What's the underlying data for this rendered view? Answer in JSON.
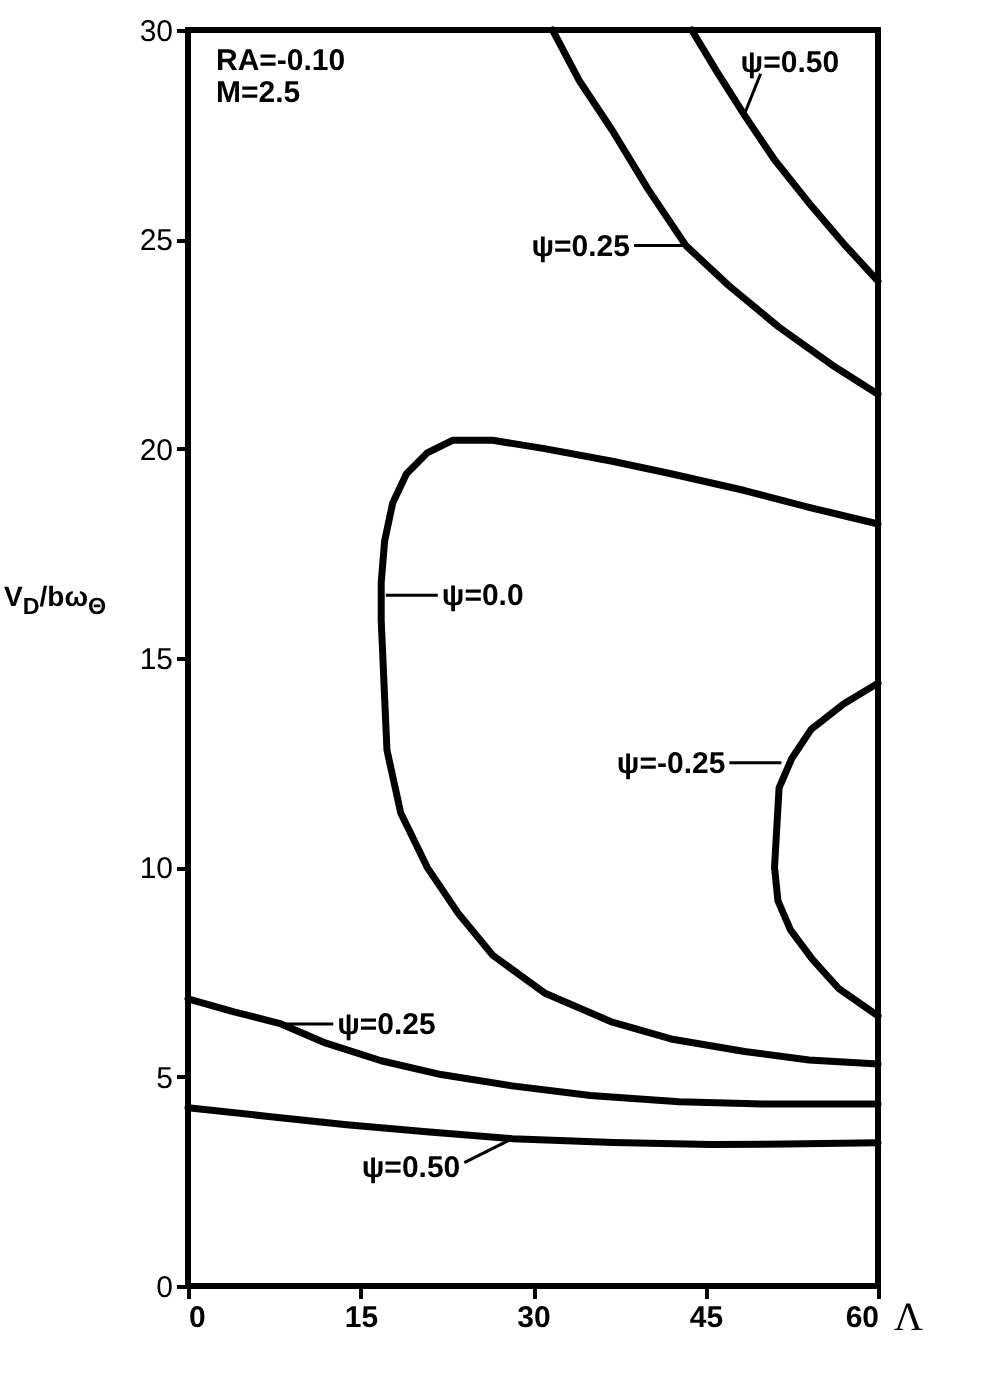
{
  "chart_data": {
    "type": "line",
    "xlabel": "Λ",
    "ylabel": "V$_{D}$/bω$_{Θ}$",
    "xlim": [
      0,
      60
    ],
    "xticks": [
      0,
      15,
      30,
      45,
      60
    ],
    "ylim": [
      0,
      30
    ],
    "yticks": [
      0,
      5,
      10,
      15,
      20,
      25,
      30
    ],
    "grid": false,
    "line_style": "solid",
    "series": [
      {
        "color": "#000000",
        "x": [
          43.8,
          46,
          48.4,
          51,
          54.2,
          57,
          60
        ],
        "values": [
          30,
          29,
          27.96,
          26.9,
          25.8,
          24.9,
          24.0
        ]
      },
      {
        "color": "#000000",
        "x": [
          31.7,
          34,
          36.9,
          40,
          43.3,
          47,
          51.4,
          56,
          60
        ],
        "values": [
          30,
          28.8,
          27.6,
          26.2,
          24.85,
          23.9,
          22.9,
          22.0,
          21.3
        ]
      },
      {
        "color": "#000000",
        "x": [
          60,
          54,
          48.4,
          42,
          36.9,
          31,
          26.5,
          23,
          20.8,
          19,
          17.8,
          17.1,
          16.8,
          16.8,
          17.3,
          18.5,
          20.8,
          23.5,
          26.5,
          31,
          36.9,
          42,
          48.4,
          54,
          60
        ],
        "values": [
          18.2,
          18.6,
          19.0,
          19.4,
          19.7,
          20.0,
          20.2,
          20.2,
          19.9,
          19.4,
          18.7,
          17.8,
          16.8,
          15.9,
          12.8,
          11.3,
          10.0,
          8.9,
          7.9,
          7.0,
          6.3,
          5.9,
          5.6,
          5.4,
          5.3
        ]
      },
      {
        "color": "#000000",
        "x": [
          60,
          57,
          54.2,
          52.5,
          51.4,
          51.0,
          51.3,
          52.4,
          54.3,
          56.6,
          60
        ],
        "values": [
          14.4,
          13.9,
          13.3,
          12.6,
          11.9,
          10.0,
          9.2,
          8.5,
          7.8,
          7.1,
          6.45
        ]
      },
      {
        "color": "#000000",
        "x": [
          0,
          4,
          8.1,
          12,
          16.8,
          22,
          28.2,
          35,
          42.7,
          50,
          60
        ],
        "values": [
          6.86,
          6.55,
          6.26,
          5.8,
          5.38,
          5.05,
          4.78,
          4.55,
          4.4,
          4.35,
          4.35
        ]
      },
      {
        "color": "#000000",
        "x": [
          0,
          7,
          13.8,
          21,
          28.2,
          37,
          45.5,
          52,
          60
        ],
        "values": [
          4.26,
          4.05,
          3.85,
          3.68,
          3.52,
          3.43,
          3.38,
          3.39,
          3.42
        ]
      }
    ],
    "annotations": [
      "RA=-0.10",
      "M=2.5",
      {
        "text": "ψ=0.50",
        "x": 48.4,
        "y": 28.0
      },
      {
        "text": "ψ=0.25",
        "x": 43.3,
        "y": 24.85
      },
      {
        "text": "ψ=0.0",
        "x": 17.2,
        "y": 16.5
      },
      {
        "text": "ψ=-0.25",
        "x": 51.6,
        "y": 12.5
      },
      {
        "text": "ψ=0.25",
        "x": 8.1,
        "y": 6.26
      },
      {
        "text": "ψ=0.50",
        "x": 28.2,
        "y": 3.52
      }
    ]
  }
}
